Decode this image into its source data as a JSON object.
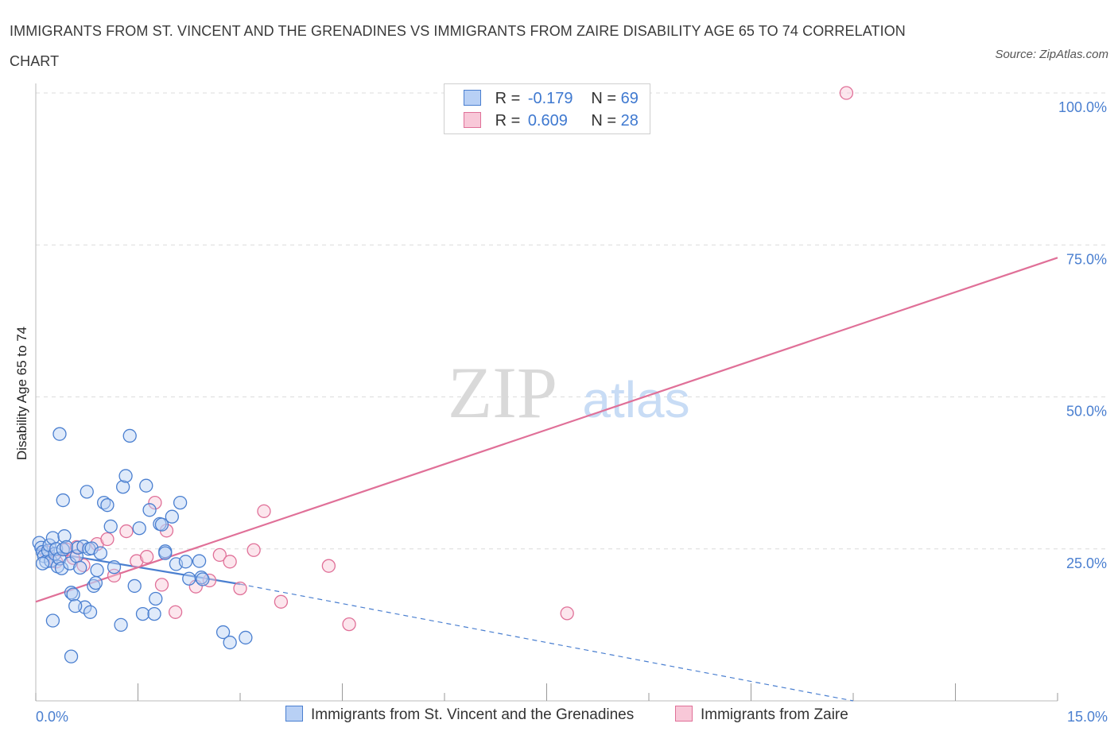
{
  "title": "IMMIGRANTS FROM ST. VINCENT AND THE GRENADINES VS IMMIGRANTS FROM ZAIRE DISABILITY AGE 65 TO 74 CORRELATION CHART",
  "source": "Source: ZipAtlas.com",
  "watermark": {
    "zip": "ZIP",
    "atlas": "atlas"
  },
  "colors": {
    "blue": "#4a7fd0",
    "blue_fill": "#b8d0f5",
    "pink": "#e07098",
    "pink_fill": "#f8c8d8"
  },
  "legend": {
    "rows": [
      {
        "r_label": "R =",
        "r_value": "-0.179",
        "n_label": "N =",
        "n_value": "69"
      },
      {
        "r_label": "R =",
        "r_value": "0.609",
        "n_label": "N =",
        "n_value": "28"
      }
    ]
  },
  "chart_data": {
    "type": "scatter",
    "title": "IMMIGRANTS FROM ST. VINCENT AND THE GRENADINES VS IMMIGRANTS FROM ZAIRE DISABILITY AGE 65 TO 74 CORRELATION CHART",
    "xlabel": "",
    "ylabel": "Disability Age 65 to 74",
    "xlim": [
      0,
      15
    ],
    "ylim": [
      0,
      100
    ],
    "x_tick_labels": [
      "0.0%",
      "15.0%"
    ],
    "y_tick_labels": [
      "100.0%",
      "75.0%",
      "50.0%",
      "25.0%"
    ],
    "y_ticks": [
      100,
      75,
      50,
      25
    ],
    "grid": true,
    "legend_position": "bottom",
    "series": [
      {
        "name": "Immigrants from St. Vincent and the Grenadines",
        "color": "#4a7fd0",
        "r": -0.179,
        "n": 69,
        "trend": {
          "x0": 0,
          "y0": 24.8,
          "x1": 3.0,
          "y1": 19.2,
          "dashed_to_x": 12.0,
          "dashed_to_y": 0
        },
        "points": [
          [
            0.05,
            26.0
          ],
          [
            0.08,
            25.2
          ],
          [
            0.1,
            24.5
          ],
          [
            0.12,
            23.8
          ],
          [
            0.15,
            22.9
          ],
          [
            0.18,
            24.7
          ],
          [
            0.2,
            25.6
          ],
          [
            0.22,
            23.0
          ],
          [
            0.25,
            26.8
          ],
          [
            0.28,
            24.2
          ],
          [
            0.3,
            25.0
          ],
          [
            0.32,
            22.1
          ],
          [
            0.35,
            23.4
          ],
          [
            0.38,
            21.8
          ],
          [
            0.4,
            24.9
          ],
          [
            0.42,
            27.1
          ],
          [
            0.45,
            25.3
          ],
          [
            0.5,
            22.6
          ],
          [
            0.52,
            17.8
          ],
          [
            0.55,
            17.5
          ],
          [
            0.6,
            23.8
          ],
          [
            0.62,
            25.2
          ],
          [
            0.65,
            21.9
          ],
          [
            0.7,
            25.4
          ],
          [
            0.72,
            15.4
          ],
          [
            0.75,
            34.4
          ],
          [
            0.78,
            25.0
          ],
          [
            0.8,
            14.6
          ],
          [
            0.82,
            25.1
          ],
          [
            0.85,
            18.9
          ],
          [
            0.88,
            19.4
          ],
          [
            0.9,
            21.5
          ],
          [
            0.95,
            24.3
          ],
          [
            1.0,
            32.6
          ],
          [
            1.05,
            32.2
          ],
          [
            1.1,
            28.7
          ],
          [
            1.15,
            22.0
          ],
          [
            1.25,
            12.5
          ],
          [
            1.28,
            35.2
          ],
          [
            1.32,
            37.0
          ],
          [
            1.38,
            43.6
          ],
          [
            1.45,
            18.9
          ],
          [
            1.52,
            28.4
          ],
          [
            1.57,
            14.3
          ],
          [
            1.62,
            35.4
          ],
          [
            1.67,
            31.4
          ],
          [
            1.74,
            14.3
          ],
          [
            1.76,
            16.8
          ],
          [
            1.82,
            29.1
          ],
          [
            1.85,
            29.0
          ],
          [
            1.9,
            24.6
          ],
          [
            2.0,
            30.3
          ],
          [
            2.06,
            22.5
          ],
          [
            2.12,
            32.6
          ],
          [
            2.2,
            22.9
          ],
          [
            2.25,
            20.1
          ],
          [
            2.43,
            20.3
          ],
          [
            0.25,
            13.2
          ],
          [
            0.35,
            43.9
          ],
          [
            0.52,
            7.3
          ],
          [
            0.4,
            33.0
          ],
          [
            1.9,
            24.3
          ],
          [
            2.4,
            23.0
          ],
          [
            2.45,
            20.0
          ],
          [
            2.75,
            11.3
          ],
          [
            2.85,
            9.6
          ],
          [
            3.08,
            10.4
          ],
          [
            0.1,
            22.6
          ],
          [
            0.58,
            15.6
          ]
        ]
      },
      {
        "name": "Immigrants from Zaire",
        "color": "#e07098",
        "r": 0.609,
        "n": 28,
        "trend": {
          "x0": 0,
          "y0": 16.3,
          "x1": 15.0,
          "y1": 72.9
        },
        "points": [
          [
            0.15,
            24.5
          ],
          [
            0.3,
            22.9
          ],
          [
            0.45,
            24.9
          ],
          [
            0.55,
            23.5
          ],
          [
            0.6,
            25.3
          ],
          [
            0.7,
            22.3
          ],
          [
            0.9,
            25.8
          ],
          [
            1.05,
            26.6
          ],
          [
            1.15,
            20.6
          ],
          [
            1.33,
            27.9
          ],
          [
            1.48,
            23.0
          ],
          [
            1.63,
            23.7
          ],
          [
            1.75,
            32.6
          ],
          [
            1.85,
            19.1
          ],
          [
            1.92,
            28.0
          ],
          [
            2.05,
            14.6
          ],
          [
            2.35,
            18.8
          ],
          [
            2.55,
            19.8
          ],
          [
            2.7,
            24.0
          ],
          [
            2.85,
            22.9
          ],
          [
            3.0,
            18.5
          ],
          [
            3.2,
            24.8
          ],
          [
            3.35,
            31.2
          ],
          [
            3.6,
            16.3
          ],
          [
            4.3,
            22.2
          ],
          [
            4.6,
            12.6
          ],
          [
            7.8,
            14.4
          ],
          [
            11.9,
            100.0
          ]
        ]
      }
    ]
  }
}
